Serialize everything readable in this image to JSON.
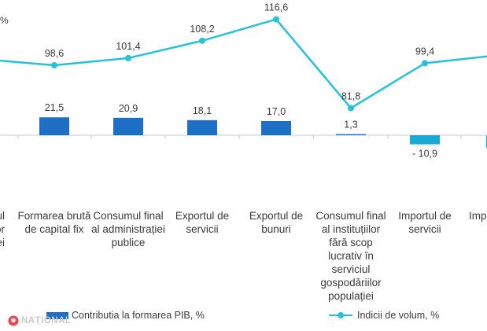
{
  "chart_data": {
    "type": "bar",
    "unit_mark": "%",
    "categories": [
      "ul\nilor\nei",
      "Formarea brută de capital fix",
      "Consumul final al administrației publice",
      "Exportul de servicii",
      "Exportul de bunuri",
      "Consumul final al instituțiilor fără scop lucrativ în serviciul gospodăriilor populației",
      "Importul de servicii",
      "Imp b"
    ],
    "series": [
      {
        "name": "Contributia la formarea PIB, %",
        "type": "bar",
        "color": "#1f6fc6",
        "negative_color": "#1aa8d6",
        "values": [
          null,
          21.5,
          20.9,
          18.1,
          17.0,
          1.3,
          -10.9,
          -15.0
        ],
        "labels": [
          "",
          "21,5",
          "20,9",
          "18,1",
          "17,0",
          "1,3",
          "- 10,9",
          ""
        ]
      },
      {
        "name": "Indicii de volum, %",
        "type": "line",
        "color": "#27c1da",
        "values": [
          101.0,
          98.6,
          101.4,
          108.2,
          116.6,
          81.8,
          99.4,
          102.5
        ],
        "labels": [
          "",
          "98,6",
          "101,4",
          "108,2",
          "116,6",
          "81,8",
          "99,4",
          ""
        ]
      }
    ],
    "legend": "bottom"
  },
  "watermark": {
    "text": "NAȚIONAL"
  }
}
